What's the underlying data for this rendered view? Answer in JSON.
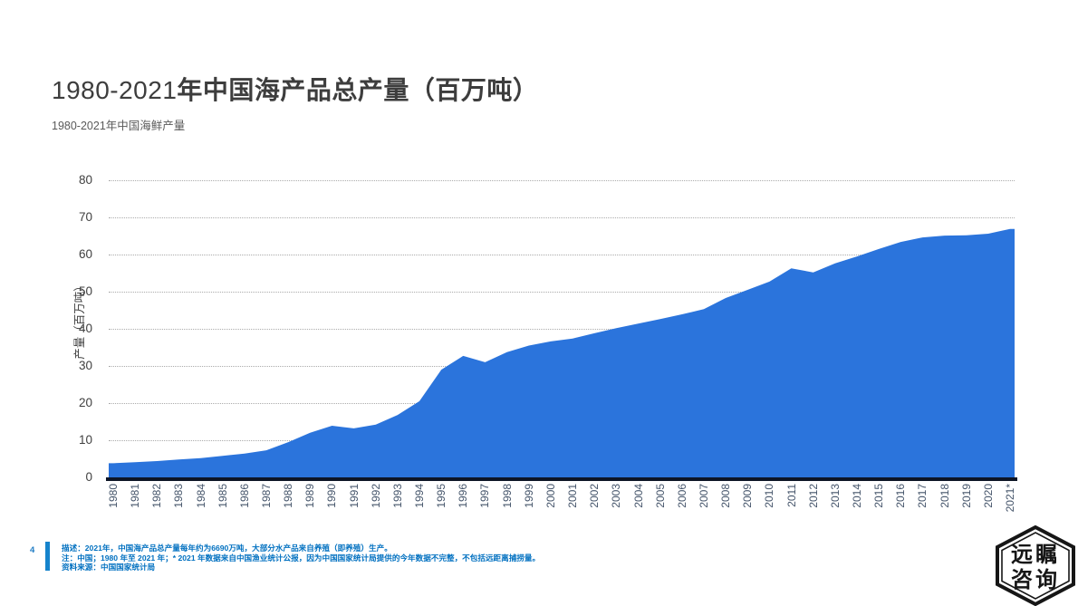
{
  "header": {
    "title_prefix": "1980-2021",
    "title_main": "年中国海产品总产量（百万吨）",
    "subtitle": "1980-2021年中国海鲜产量"
  },
  "chart_data": {
    "type": "area",
    "title": "1980-2021年中国海产品总产量（百万吨）",
    "xlabel": "",
    "ylabel": "产量（百万吨）",
    "ylim": [
      0,
      80
    ],
    "yticks": [
      0,
      10,
      20,
      30,
      40,
      50,
      60,
      70,
      80
    ],
    "grid": "horizontal-dotted",
    "legend": "none",
    "fill_color": "#2b74dc",
    "axis_line_color": "#0d1526",
    "categories": [
      "1980",
      "1981",
      "1982",
      "1983",
      "1984",
      "1985",
      "1986",
      "1987",
      "1988",
      "1989",
      "1990",
      "1991",
      "1992",
      "1993",
      "1994",
      "1995",
      "1996",
      "1997",
      "1998",
      "1999",
      "2000",
      "2001",
      "2002",
      "2003",
      "2004",
      "2005",
      "2006",
      "2007",
      "2008",
      "2009",
      "2010",
      "2011",
      "2012",
      "2013",
      "2014",
      "2015",
      "2016",
      "2017",
      "2018",
      "2019",
      "2020",
      "2021*"
    ],
    "values": [
      3.8,
      4.1,
      4.4,
      4.8,
      5.2,
      5.8,
      6.4,
      7.3,
      9.5,
      12.0,
      13.9,
      13.2,
      14.2,
      16.8,
      20.5,
      29.0,
      32.7,
      31.0,
      33.7,
      35.5,
      36.6,
      37.4,
      38.8,
      40.2,
      41.4,
      42.6,
      43.9,
      45.3,
      48.3,
      50.5,
      52.7,
      56.3,
      55.2,
      57.6,
      59.5,
      61.5,
      63.4,
      64.6,
      65.1,
      65.2,
      65.6,
      66.9
    ]
  },
  "footer": {
    "page_number": "4",
    "lines": [
      "描述：2021年，中国海产品总产量每年约为6690万吨，大部分水产品来自养殖（即养殖）生产。",
      "注：中国；1980 年至 2021 年；* 2021 年数据来自中国渔业统计公报，因为中国国家统计局提供的今年数据不完整，不包括远距离捕捞量。",
      "资料来源：中国国家统计局"
    ]
  },
  "logo": {
    "line1": "远瞩",
    "line2": "咨询"
  }
}
